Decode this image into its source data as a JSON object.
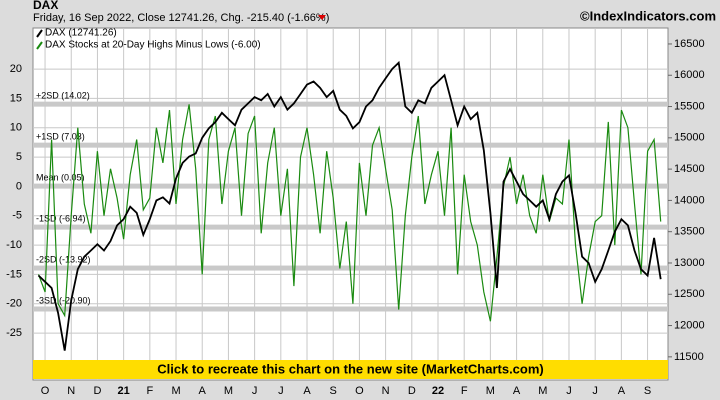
{
  "chart_data": {
    "type": "line",
    "title": "DAX",
    "subtitle": "Friday, 16 Sep 2022, Close 12741.26, Chg. -215.40 (-1.66%)",
    "credit": "©IndexIndicators.com",
    "banner": "Click to recreate this chart on the new site (MarketCharts.com)",
    "x": [
      -0.25,
      0,
      0.25,
      0.5,
      0.75,
      1,
      1.25,
      1.5,
      1.75,
      2,
      2.25,
      2.5,
      2.75,
      3,
      3.25,
      3.5,
      3.75,
      4,
      4.25,
      4.5,
      4.75,
      5,
      5.25,
      5.5,
      5.75,
      6,
      6.25,
      6.5,
      6.75,
      7,
      7.25,
      7.5,
      7.75,
      8,
      8.25,
      8.5,
      8.75,
      9,
      9.25,
      9.5,
      9.75,
      10,
      10.25,
      10.5,
      10.75,
      11,
      11.25,
      11.5,
      11.75,
      12,
      12.25,
      12.5,
      12.75,
      13,
      13.25,
      13.5,
      13.75,
      14,
      14.25,
      14.5,
      14.75,
      15,
      15.25,
      15.5,
      15.75,
      16,
      16.25,
      16.5,
      16.75,
      17,
      17.25,
      17.5,
      17.75,
      18,
      18.25,
      18.5,
      18.75,
      19,
      19.25,
      19.5,
      19.75,
      20,
      20.25,
      20.5,
      20.75,
      21,
      21.25,
      21.5,
      21.75,
      22,
      22.25,
      22.5,
      22.75,
      23,
      23.25,
      23.5
    ],
    "series": [
      {
        "name": "DAX Stocks at 20-Day Highs Minus Lows (-6.00)",
        "color": "#1a8a10",
        "axis": "y",
        "values": [
          -15,
          -18,
          8,
          -20,
          -22,
          -5,
          10,
          -3,
          -8,
          6,
          -5,
          3,
          -2,
          -9,
          2,
          8,
          -4,
          -2,
          10,
          4,
          13,
          -3,
          8,
          14,
          3,
          -15,
          8,
          12,
          -3,
          6,
          10,
          -5,
          9,
          12,
          -8,
          4,
          10,
          -5,
          3,
          -17,
          5,
          10,
          2,
          -8,
          6,
          -2,
          -14,
          -6,
          -20,
          4,
          -5,
          7,
          10,
          3,
          -4,
          -21,
          -5,
          5,
          12,
          -3,
          2,
          6,
          -5,
          10,
          -15,
          2,
          -6,
          -10,
          -18,
          -23,
          -12,
          0,
          5,
          -3,
          2,
          -5,
          -8,
          2,
          -6,
          -2,
          -3,
          8,
          -10,
          -20,
          -12,
          -6,
          -5,
          11,
          -10,
          13,
          10,
          -3,
          -15,
          6,
          8,
          -6
        ]
      },
      {
        "name": "DAX (12741.26)",
        "color": "#000000",
        "axis": "y2",
        "values": [
          12800,
          12700,
          12600,
          12200,
          11600,
          12400,
          12900,
          13100,
          13200,
          13300,
          13200,
          13350,
          13600,
          13700,
          13900,
          13800,
          13450,
          13700,
          14000,
          14050,
          13950,
          14350,
          14600,
          14700,
          14750,
          15000,
          15150,
          15250,
          15400,
          15300,
          15200,
          15450,
          15550,
          15650,
          15600,
          15700,
          15500,
          15650,
          15450,
          15550,
          15700,
          15850,
          15900,
          15800,
          15650,
          15750,
          15450,
          15350,
          15150,
          15250,
          15500,
          15600,
          15800,
          15950,
          16100,
          16200,
          15500,
          15400,
          15600,
          15550,
          15800,
          15900,
          16000,
          15600,
          15200,
          15500,
          15300,
          15400,
          14800,
          13800,
          12600,
          14300,
          14500,
          14300,
          14100,
          14000,
          13900,
          14000,
          13700,
          14100,
          14300,
          14400,
          13800,
          13100,
          13000,
          12700,
          12900,
          13200,
          13500,
          13700,
          13600,
          13200,
          12900,
          12800,
          13400,
          12741
        ]
      }
    ],
    "reference_lines": [
      {
        "label": "+2SD (14.02)",
        "value": 14.02
      },
      {
        "label": "+1SD (7.03)",
        "value": 7.03
      },
      {
        "label": "Mean (0.05)",
        "value": 0.05
      },
      {
        "label": "-1SD (-6.94)",
        "value": -6.94
      },
      {
        "label": "-2SD (-13.92)",
        "value": -13.92
      },
      {
        "label": "-3SD (-20.90)",
        "value": -20.9
      }
    ],
    "xlim": [
      -0.46,
      23.78
    ],
    "xticks": [
      {
        "value": 0,
        "label": "O"
      },
      {
        "value": 1,
        "label": "N"
      },
      {
        "value": 2,
        "label": "D"
      },
      {
        "value": 3,
        "label": "21"
      },
      {
        "value": 4,
        "label": "F"
      },
      {
        "value": 5,
        "label": "M"
      },
      {
        "value": 6,
        "label": "A"
      },
      {
        "value": 7,
        "label": "M"
      },
      {
        "value": 8,
        "label": "J"
      },
      {
        "value": 9,
        "label": "J"
      },
      {
        "value": 10,
        "label": "A"
      },
      {
        "value": 11,
        "label": "S"
      },
      {
        "value": 12,
        "label": "O"
      },
      {
        "value": 13,
        "label": "N"
      },
      {
        "value": 14,
        "label": "D"
      },
      {
        "value": 15,
        "label": "22"
      },
      {
        "value": 16,
        "label": "F"
      },
      {
        "value": 17,
        "label": "M"
      },
      {
        "value": 18,
        "label": "A"
      },
      {
        "value": 19,
        "label": "M"
      },
      {
        "value": 20,
        "label": "J"
      },
      {
        "value": 21,
        "label": "J"
      },
      {
        "value": 22,
        "label": "A"
      },
      {
        "value": 23,
        "label": "S"
      }
    ],
    "ylim": [
      -33,
      27
    ],
    "yticks": [
      -25,
      -20,
      -15,
      -10,
      -5,
      0,
      5,
      10,
      15,
      20
    ],
    "y2lim": [
      11130,
      16755
    ],
    "y2ticks": [
      11500,
      12000,
      12500,
      13000,
      13500,
      14000,
      14500,
      15000,
      15500,
      16000,
      16500
    ],
    "grid": true
  }
}
